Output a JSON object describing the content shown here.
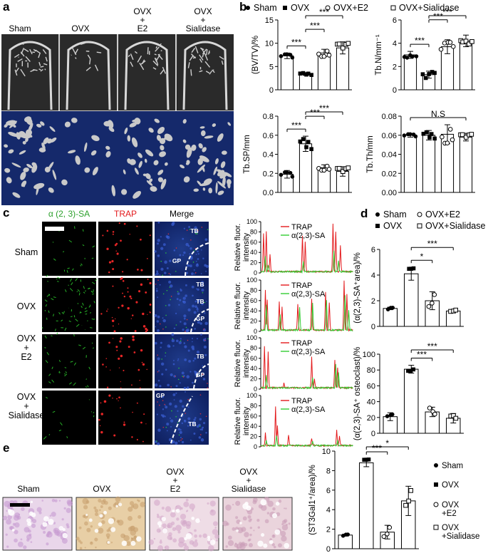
{
  "panel_a": {
    "letter": "a",
    "groups": [
      "Sham",
      "OVX",
      "OVX\n+\nE2",
      "OVX\n+\nSialidase"
    ]
  },
  "panel_b": {
    "letter": "b",
    "legend": [
      {
        "marker": "filled-circle",
        "label": "Sham"
      },
      {
        "marker": "filled-square",
        "label": "OVX"
      },
      {
        "marker": "open-circle",
        "label": "OVX+E2"
      },
      {
        "marker": "open-square",
        "label": "OVX+Sialidase"
      }
    ]
  },
  "panel_c": {
    "letter": "c",
    "columns": [
      {
        "label": "α (2, 3)-SA",
        "color": "#2ca02c"
      },
      {
        "label": "TRAP",
        "color": "#e31a1c"
      },
      {
        "label": "Merge",
        "color": "#000000"
      }
    ],
    "rows": [
      "Sham",
      "OVX",
      "OVX\n+\nE2",
      "OVX\n+\nSialidase"
    ],
    "merge_labels": [
      [
        "TB",
        "GP"
      ],
      [
        "TB",
        "TB",
        "GP"
      ],
      [
        "TB",
        "GP"
      ],
      [
        "GP",
        "TB"
      ]
    ],
    "profile_ylabel": "Relative fluor.\nintensity",
    "profile_legend": [
      "TRAP",
      "α(2,3)-SA"
    ],
    "profile_colors": {
      "TRAP": "#e31a1c",
      "SA": "#33cc33"
    }
  },
  "panel_d": {
    "letter": "d",
    "legend": [
      {
        "marker": "filled-circle",
        "label": "Sham"
      },
      {
        "marker": "filled-square",
        "label": "OVX"
      },
      {
        "marker": "open-circle",
        "label": "OVX+E2"
      },
      {
        "marker": "open-square",
        "label": "OVX+Sialidase"
      }
    ]
  },
  "panel_e": {
    "letter": "e",
    "groups": [
      "Sham",
      "OVX",
      "OVX\n+\nE2",
      "OVX\n+\nSialidase"
    ],
    "legend": [
      {
        "marker": "filled-circle",
        "label": "Sham"
      },
      {
        "marker": "filled-square",
        "label": "OVX"
      },
      {
        "marker": "open-circle",
        "label": "OVX\n+E2"
      },
      {
        "marker": "open-square",
        "label": "OVX\n+Sialidase"
      }
    ]
  },
  "chart_data": [
    {
      "id": "bvtv",
      "type": "bar",
      "categories": [
        "Sham",
        "OVX",
        "OVX+E2",
        "OVX+Sialidase"
      ],
      "values": [
        7.3,
        3.4,
        7.9,
        9.0
      ],
      "errors": [
        0.6,
        0.3,
        0.8,
        1.3
      ],
      "ylabel": "(BV/TV)/%",
      "ylim": [
        0,
        15
      ],
      "yticks": [
        0,
        5,
        10,
        15
      ],
      "sig": [
        {
          "a": 0,
          "b": 1,
          "label": "***"
        },
        {
          "a": 1,
          "b": 2,
          "label": "***"
        },
        {
          "a": 1,
          "b": 3,
          "label": "***"
        }
      ]
    },
    {
      "id": "tbn",
      "type": "bar",
      "categories": [
        "Sham",
        "OVX",
        "OVX+E2",
        "OVX+Sialidase"
      ],
      "values": [
        3.0,
        1.3,
        3.7,
        4.2
      ],
      "errors": [
        0.3,
        0.3,
        0.6,
        0.5
      ],
      "ylabel": "Tb.N/mm⁻¹",
      "ylim": [
        0,
        6
      ],
      "yticks": [
        0,
        2,
        4,
        6
      ],
      "sig": [
        {
          "a": 0,
          "b": 1,
          "label": "***"
        },
        {
          "a": 1,
          "b": 2,
          "label": "***"
        },
        {
          "a": 1,
          "b": 3,
          "label": "***"
        }
      ]
    },
    {
      "id": "tbsp",
      "type": "bar",
      "categories": [
        "Sham",
        "OVX",
        "OVX+E2",
        "OVX+Sialidase"
      ],
      "values": [
        0.19,
        0.51,
        0.26,
        0.22
      ],
      "errors": [
        0.04,
        0.08,
        0.03,
        0.05
      ],
      "ylabel": "Tb.SP/mm",
      "ylim": [
        0,
        0.8
      ],
      "yticks": [
        0,
        0.2,
        0.4,
        0.6,
        0.8
      ],
      "sig": [
        {
          "a": 0,
          "b": 1,
          "label": "***"
        },
        {
          "a": 1,
          "b": 2,
          "label": "***"
        },
        {
          "a": 1,
          "b": 3,
          "label": "***"
        }
      ]
    },
    {
      "id": "tbth",
      "type": "bar",
      "categories": [
        "Sham",
        "OVX",
        "OVX+E2",
        "OVX+Sialidase"
      ],
      "values": [
        0.06,
        0.06,
        0.061,
        0.058
      ],
      "errors": [
        0.002,
        0.005,
        0.01,
        0.004
      ],
      "ylabel": "Tb.Th/mm",
      "ylim": [
        0,
        0.08
      ],
      "yticks": [
        0,
        0.02,
        0.04,
        0.06,
        0.08
      ],
      "sig": [
        {
          "a": 0,
          "b": 3,
          "label": "N.S"
        }
      ]
    },
    {
      "id": "sa_area",
      "type": "bar",
      "categories": [
        "Sham",
        "OVX",
        "OVX+E2",
        "OVX+Sialidase"
      ],
      "values": [
        1.4,
        4.1,
        2.0,
        1.2
      ],
      "errors": [
        0.1,
        0.5,
        0.7,
        0.1
      ],
      "ylabel": "(α(2,3)-SA⁺area)/%",
      "ylim": [
        0,
        6
      ],
      "yticks": [
        0,
        2,
        4,
        6
      ],
      "sig": [
        {
          "a": 1,
          "b": 2,
          "label": "*"
        },
        {
          "a": 1,
          "b": 3,
          "label": "***"
        }
      ]
    },
    {
      "id": "sa_osteoclast",
      "type": "bar",
      "categories": [
        "Sham",
        "OVX",
        "OVX+E2",
        "OVX+Sialidase"
      ],
      "values": [
        21,
        81,
        27,
        19
      ],
      "errors": [
        5,
        5,
        6,
        6
      ],
      "ylabel": "(α(2,3)-SA⁺ osteoclast)/%",
      "ylim": [
        0,
        100
      ],
      "yticks": [
        0,
        20,
        40,
        60,
        80,
        100
      ],
      "sig": [
        {
          "a": 1,
          "b": 2,
          "label": "***"
        },
        {
          "a": 1,
          "b": 3,
          "label": "***"
        }
      ]
    },
    {
      "id": "st3gal1",
      "type": "bar",
      "categories": [
        "Sham",
        "OVX",
        "OVX+E2",
        "OVX+Sialidase"
      ],
      "values": [
        1.4,
        8.8,
        1.7,
        4.9
      ],
      "errors": [
        0.1,
        0.4,
        0.7,
        1.5
      ],
      "ylabel": "(ST3Gal1⁺/area)/%",
      "ylim": [
        0,
        10
      ],
      "yticks": [
        0,
        2,
        4,
        6,
        8,
        10
      ],
      "sig": [
        {
          "a": 1,
          "b": 2,
          "label": "***"
        },
        {
          "a": 1,
          "b": 3,
          "label": "*"
        }
      ]
    },
    {
      "id": "profile_sham",
      "type": "line",
      "ylim": [
        0,
        100
      ],
      "yticks": [
        0,
        20,
        40,
        60,
        80,
        100
      ],
      "series": [
        {
          "name": "TRAP",
          "peaks": [
            [
              0.03,
              75
            ],
            [
              0.06,
              80
            ],
            [
              0.1,
              35
            ],
            [
              0.45,
              70
            ],
            [
              0.48,
              60
            ],
            [
              0.78,
              95
            ],
            [
              0.81,
              80
            ],
            [
              0.86,
              50
            ]
          ]
        },
        {
          "name": "α(2,3)-SA",
          "peaks": [
            [
              0.05,
              30
            ],
            [
              0.08,
              15
            ],
            [
              0.46,
              20
            ],
            [
              0.79,
              40
            ],
            [
              0.84,
              20
            ]
          ]
        }
      ]
    },
    {
      "id": "profile_ovx",
      "type": "line",
      "ylim": [
        0,
        100
      ],
      "yticks": [
        0,
        20,
        40,
        60,
        80,
        100
      ],
      "series": [
        {
          "name": "TRAP",
          "peaks": [
            [
              0.05,
              80
            ],
            [
              0.07,
              60
            ],
            [
              0.2,
              55
            ],
            [
              0.23,
              45
            ],
            [
              0.4,
              50
            ],
            [
              0.55,
              60
            ],
            [
              0.7,
              75
            ],
            [
              0.74,
              55
            ],
            [
              0.9,
              95
            ],
            [
              0.93,
              70
            ]
          ]
        },
        {
          "name": "α(2,3)-SA",
          "peaks": [
            [
              0.06,
              50
            ],
            [
              0.21,
              30
            ],
            [
              0.42,
              45
            ],
            [
              0.56,
              55
            ],
            [
              0.71,
              60
            ],
            [
              0.91,
              70
            ],
            [
              0.95,
              40
            ]
          ]
        }
      ]
    },
    {
      "id": "profile_e2",
      "type": "line",
      "ylim": [
        0,
        100
      ],
      "yticks": [
        0,
        20,
        40,
        60,
        80,
        100
      ],
      "series": [
        {
          "name": "TRAP",
          "peaks": [
            [
              0.04,
              80
            ],
            [
              0.08,
              70
            ],
            [
              0.25,
              10
            ],
            [
              0.55,
              60
            ],
            [
              0.58,
              20
            ],
            [
              0.8,
              55
            ],
            [
              0.83,
              40
            ]
          ]
        },
        {
          "name": "α(2,3)-SA",
          "peaks": [
            [
              0.06,
              25
            ],
            [
              0.56,
              20
            ],
            [
              0.81,
              45
            ],
            [
              0.84,
              30
            ]
          ]
        }
      ]
    },
    {
      "id": "profile_sialidase",
      "type": "line",
      "ylim": [
        0,
        100
      ],
      "yticks": [
        0,
        20,
        40,
        60,
        80,
        100
      ],
      "series": [
        {
          "name": "TRAP",
          "peaks": [
            [
              0.05,
              25
            ],
            [
              0.16,
              75
            ],
            [
              0.18,
              40
            ],
            [
              0.3,
              20
            ],
            [
              0.55,
              15
            ],
            [
              0.82,
              30
            ],
            [
              0.85,
              20
            ]
          ]
        },
        {
          "name": "α(2,3)-SA",
          "peaks": [
            [
              0.06,
              10
            ],
            [
              0.17,
              20
            ],
            [
              0.56,
              10
            ],
            [
              0.83,
              10
            ]
          ]
        }
      ]
    }
  ]
}
